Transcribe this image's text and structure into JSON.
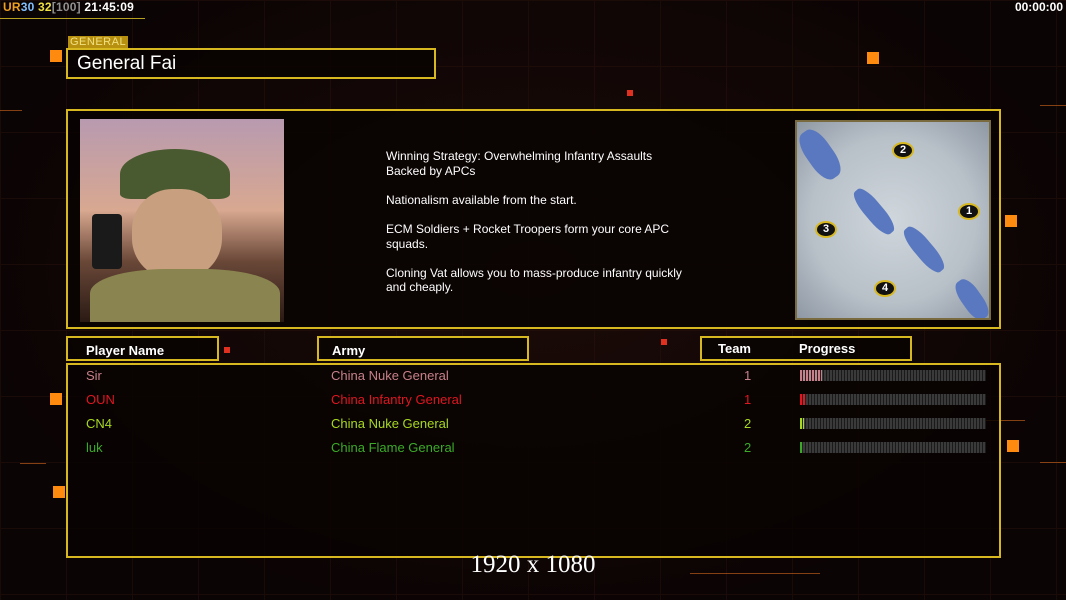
{
  "status_bar": {
    "ur": "UR",
    "v1": "30",
    "v2": "32",
    "v3": "[100]",
    "time": "21:45:09",
    "timer": "00:00:00"
  },
  "general": {
    "label": "GENERAL",
    "name": "General Fai",
    "description": "Winning Strategy: Overwhelming Infantry Assaults\n Backed by APCs\n\nNationalism available from the start.\n\nECM Soldiers + Rocket Troopers form your core APC\n squads.\n\nCloning Vat allows you to mass-produce infantry quickly\n and cheaply."
  },
  "map": {
    "markers": [
      "1",
      "2",
      "3",
      "4"
    ]
  },
  "table": {
    "headers": {
      "player": "Player Name",
      "army": "Army",
      "team": "Team",
      "progress": "Progress"
    },
    "rows": [
      {
        "player": "Sir",
        "army": "China Nuke General",
        "team": "1",
        "progress": 12,
        "color": "#c8808a"
      },
      {
        "player": "OUN",
        "army": "China Infantry General",
        "team": "1",
        "progress": 3,
        "color": "#e01620"
      },
      {
        "player": "CN4",
        "army": "China Nuke General",
        "team": "2",
        "progress": 2,
        "color": "#a8d820"
      },
      {
        "player": "luk",
        "army": "China Flame General",
        "team": "2",
        "progress": 1,
        "color": "#3caa28"
      }
    ]
  },
  "resolution": "1920 x 1080"
}
